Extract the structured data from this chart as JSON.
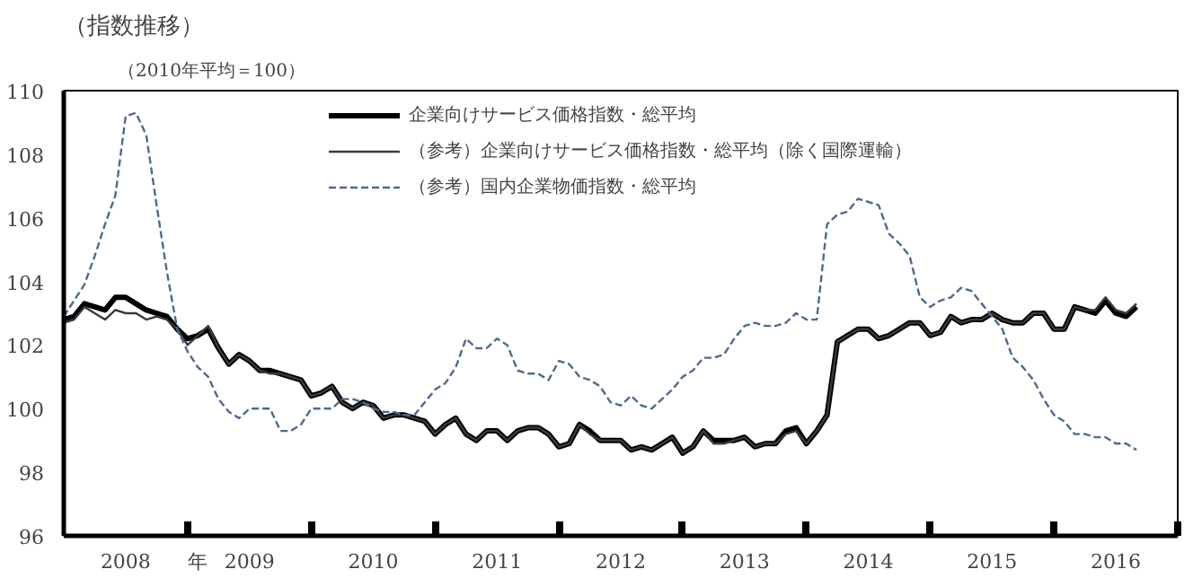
{
  "chart_data": {
    "type": "line",
    "title": "（指数推移）",
    "subtitle": "（2010年平均＝100）",
    "xlabel": "年",
    "x": [
      "2008-01",
      "2008-02",
      "2008-03",
      "2008-04",
      "2008-05",
      "2008-06",
      "2008-07",
      "2008-08",
      "2008-09",
      "2008-10",
      "2008-11",
      "2008-12",
      "2009-01",
      "2009-02",
      "2009-03",
      "2009-04",
      "2009-05",
      "2009-06",
      "2009-07",
      "2009-08",
      "2009-09",
      "2009-10",
      "2009-11",
      "2009-12",
      "2010-01",
      "2010-02",
      "2010-03",
      "2010-04",
      "2010-05",
      "2010-06",
      "2010-07",
      "2010-08",
      "2010-09",
      "2010-10",
      "2010-11",
      "2010-12",
      "2011-01",
      "2011-02",
      "2011-03",
      "2011-04",
      "2011-05",
      "2011-06",
      "2011-07",
      "2011-08",
      "2011-09",
      "2011-10",
      "2011-11",
      "2011-12",
      "2012-01",
      "2012-02",
      "2012-03",
      "2012-04",
      "2012-05",
      "2012-06",
      "2012-07",
      "2012-08",
      "2012-09",
      "2012-10",
      "2012-11",
      "2012-12",
      "2013-01",
      "2013-02",
      "2013-03",
      "2013-04",
      "2013-05",
      "2013-06",
      "2013-07",
      "2013-08",
      "2013-09",
      "2013-10",
      "2013-11",
      "2013-12",
      "2014-01",
      "2014-02",
      "2014-03",
      "2014-04",
      "2014-05",
      "2014-06",
      "2014-07",
      "2014-08",
      "2014-09",
      "2014-10",
      "2014-11",
      "2014-12",
      "2015-01",
      "2015-02",
      "2015-03",
      "2015-04",
      "2015-05",
      "2015-06",
      "2015-07",
      "2015-08",
      "2015-09",
      "2015-10",
      "2015-11",
      "2015-12",
      "2016-01",
      "2016-02",
      "2016-03",
      "2016-04",
      "2016-05",
      "2016-06",
      "2016-07",
      "2016-08",
      "2016-09"
    ],
    "series": [
      {
        "name": "企業向けサービス価格指数・総平均",
        "color": "#000000",
        "line_style": "solid",
        "values": [
          102.8,
          102.9,
          103.3,
          103.2,
          103.1,
          103.5,
          103.5,
          103.3,
          103.1,
          103.0,
          102.9,
          102.5,
          102.2,
          102.3,
          102.5,
          101.9,
          101.4,
          101.7,
          101.5,
          101.2,
          101.2,
          101.1,
          101.0,
          100.9,
          100.4,
          100.5,
          100.7,
          100.2,
          100.0,
          100.2,
          100.1,
          99.7,
          99.8,
          99.8,
          99.7,
          99.6,
          99.2,
          99.5,
          99.7,
          99.2,
          99.0,
          99.3,
          99.3,
          99.0,
          99.3,
          99.4,
          99.4,
          99.2,
          98.8,
          98.9,
          99.5,
          99.3,
          99.0,
          99.0,
          99.0,
          98.7,
          98.8,
          98.7,
          98.9,
          99.1,
          98.6,
          98.8,
          99.3,
          99.0,
          99.0,
          99.0,
          99.1,
          98.8,
          98.9,
          98.9,
          99.3,
          99.4,
          98.9,
          99.3,
          99.8,
          102.1,
          102.3,
          102.5,
          102.5,
          102.2,
          102.3,
          102.5,
          102.7,
          102.7,
          102.3,
          102.4,
          102.9,
          102.7,
          102.8,
          102.8,
          103.0,
          102.8,
          102.7,
          102.7,
          103.0,
          103.0,
          102.5,
          102.5,
          103.2,
          103.1,
          103.0,
          103.4,
          103.0,
          102.9,
          103.2
        ]
      },
      {
        "name": "（参考）企業向けサービス価格指数・総平均（除く国際運輸）",
        "color": "#3a3a3a",
        "line_style": "solid",
        "values": [
          102.7,
          102.8,
          103.2,
          103.0,
          102.8,
          103.1,
          103.0,
          103.0,
          102.8,
          102.9,
          102.8,
          102.5,
          102.0,
          102.3,
          102.6,
          101.9,
          101.4,
          101.7,
          101.5,
          101.2,
          101.1,
          101.1,
          101.0,
          100.9,
          100.4,
          100.5,
          100.7,
          100.2,
          100.0,
          100.2,
          100.1,
          99.7,
          99.8,
          99.8,
          99.7,
          99.6,
          99.2,
          99.5,
          99.7,
          99.2,
          99.0,
          99.3,
          99.3,
          99.0,
          99.3,
          99.4,
          99.4,
          99.2,
          98.8,
          98.9,
          99.5,
          99.2,
          99.0,
          99.0,
          99.0,
          98.7,
          98.8,
          98.7,
          98.9,
          99.1,
          98.6,
          98.8,
          99.3,
          98.9,
          98.9,
          99.0,
          99.1,
          98.8,
          98.9,
          98.9,
          99.2,
          99.3,
          98.9,
          99.3,
          99.8,
          102.1,
          102.3,
          102.5,
          102.5,
          102.2,
          102.3,
          102.5,
          102.7,
          102.7,
          102.3,
          102.4,
          102.9,
          102.7,
          102.8,
          102.8,
          103.0,
          102.8,
          102.7,
          102.7,
          103.0,
          103.0,
          102.5,
          102.5,
          103.2,
          103.1,
          103.1,
          103.5,
          103.1,
          103.0,
          103.3
        ]
      },
      {
        "name": "（参考）国内企業物価指数・総平均",
        "color": "#4f6a8f",
        "line_style": "dashed",
        "values": [
          102.9,
          103.4,
          103.9,
          104.8,
          105.8,
          106.7,
          109.2,
          109.3,
          108.6,
          106.4,
          104.3,
          102.5,
          101.8,
          101.3,
          101.0,
          100.3,
          99.9,
          99.7,
          100.0,
          100.0,
          100.0,
          99.3,
          99.3,
          99.5,
          100.0,
          100.0,
          100.0,
          100.3,
          100.3,
          100.2,
          100.0,
          99.9,
          99.9,
          99.8,
          99.8,
          100.2,
          100.6,
          100.8,
          101.3,
          102.2,
          101.9,
          101.9,
          102.2,
          102.0,
          101.2,
          101.1,
          101.1,
          100.9,
          101.5,
          101.4,
          101.0,
          100.9,
          100.7,
          100.2,
          100.1,
          100.4,
          100.1,
          100.0,
          100.3,
          100.6,
          101.0,
          101.2,
          101.6,
          101.6,
          101.7,
          102.2,
          102.6,
          102.7,
          102.6,
          102.6,
          102.7,
          103.0,
          102.8,
          102.8,
          105.8,
          106.1,
          106.2,
          106.6,
          106.5,
          106.4,
          105.5,
          105.2,
          104.8,
          103.5,
          103.2,
          103.4,
          103.5,
          103.8,
          103.7,
          103.3,
          102.9,
          102.5,
          101.6,
          101.3,
          100.9,
          100.3,
          99.8,
          99.6,
          99.2,
          99.2,
          99.1,
          99.1,
          98.9,
          98.9,
          98.7
        ]
      }
    ],
    "xlim": [
      "2008-01",
      "2017-01"
    ],
    "xticks": [
      {
        "value": "2008-07",
        "label": "2008"
      },
      {
        "value": "2009-07",
        "label": "2009"
      },
      {
        "value": "2010-07",
        "label": "2010"
      },
      {
        "value": "2011-07",
        "label": "2011"
      },
      {
        "value": "2012-07",
        "label": "2012"
      },
      {
        "value": "2013-07",
        "label": "2013"
      },
      {
        "value": "2014-07",
        "label": "2014"
      },
      {
        "value": "2015-07",
        "label": "2015"
      },
      {
        "value": "2016-07",
        "label": "2016"
      },
      {
        "value": "2009-01",
        "label": null
      },
      {
        "value": "2010-01",
        "label": null
      },
      {
        "value": "2011-01",
        "label": null
      },
      {
        "value": "2012-01",
        "label": null
      },
      {
        "value": "2013-01",
        "label": null
      },
      {
        "value": "2014-01",
        "label": null
      },
      {
        "value": "2015-01",
        "label": null
      },
      {
        "value": "2016-01",
        "label": null
      },
      {
        "value": "2017-01",
        "label": null
      }
    ],
    "ylim": [
      96,
      110
    ],
    "yticks": [
      96,
      98,
      100,
      102,
      104,
      106,
      108,
      110
    ],
    "grid": false,
    "legend": "top"
  }
}
